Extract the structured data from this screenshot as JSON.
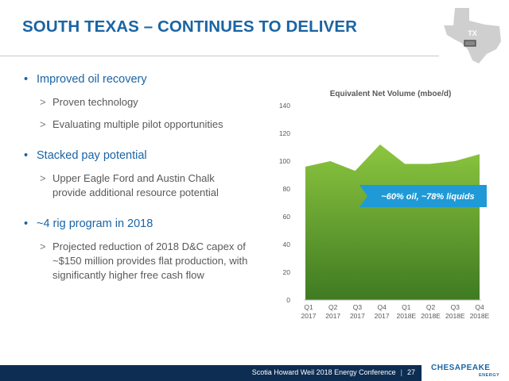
{
  "slide": {
    "title": "SOUTH TEXAS – CONTINUES TO DELIVER",
    "map_label": "TX"
  },
  "bullets": [
    {
      "text": "Improved oil recovery",
      "subs": [
        "Proven technology",
        "Evaluating multiple pilot opportunities"
      ]
    },
    {
      "text": "Stacked pay potential",
      "subs": [
        "Upper Eagle Ford and Austin Chalk provide additional resource potential"
      ]
    },
    {
      "text": "~4 rig program in 2018",
      "subs": [
        "Projected reduction of 2018 D&C capex of ~$150 million provides flat production, with significantly higher free cash flow"
      ]
    }
  ],
  "chart_data": {
    "type": "area",
    "title": "Equivalent Net Volume (mboe/d)",
    "categories": [
      [
        "Q1",
        "2017"
      ],
      [
        "Q2",
        "2017"
      ],
      [
        "Q3",
        "2017"
      ],
      [
        "Q4",
        "2017"
      ],
      [
        "Q1",
        "2018E"
      ],
      [
        "Q2",
        "2018E"
      ],
      [
        "Q3",
        "2018E"
      ],
      [
        "Q4",
        "2018E"
      ]
    ],
    "values": [
      96,
      100,
      93,
      112,
      98,
      98,
      100,
      105
    ],
    "ylim": [
      0,
      140
    ],
    "yticks": [
      0,
      20,
      40,
      60,
      80,
      100,
      120,
      140
    ],
    "grid": false,
    "annotation": "~60% oil, ~78% liquids",
    "colors": {
      "top": "#8cc63f",
      "bottom": "#3f7a22",
      "callout": "#1f9ad6"
    }
  },
  "footer": {
    "conference": "Scotia Howard Weil 2018 Energy Conference",
    "separator": "|",
    "page": "27",
    "logo_text": "CHESAPEAKE",
    "logo_sub": "ENERGY"
  },
  "colors": {
    "title": "#1a64a4",
    "footer_bar": "#0d2d52"
  }
}
